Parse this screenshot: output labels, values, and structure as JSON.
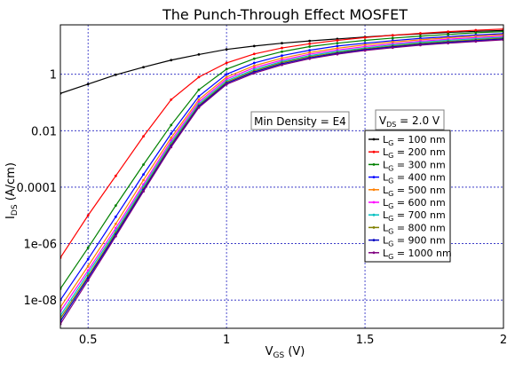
{
  "chart_data": {
    "type": "line",
    "title": "The Punch-Through Effect MOSFET",
    "xlabel": {
      "main": "V",
      "sub": "GS",
      "rest": " (V)"
    },
    "ylabel": {
      "main": "I",
      "sub": "DS",
      "rest": " (A/cm)"
    },
    "xlim": [
      0.4,
      2.0
    ],
    "ylim_log10": [
      -9,
      1.75
    ],
    "yscale": "log",
    "grid": true,
    "x_ticks": [
      0.5,
      1,
      1.5,
      2
    ],
    "x_tick_labels": [
      "0.5",
      "1",
      "1.5",
      "2"
    ],
    "y_ticks_log10": [
      0,
      -2,
      -4,
      -6,
      -8
    ],
    "y_tick_labels": [
      "1",
      "0.01",
      "0.0001",
      "1e-06",
      "1e-08"
    ],
    "legend_position": "right",
    "annotations": [
      {
        "text": "Min Density = E4"
      },
      {
        "main": "V",
        "sub": "DS",
        "rest": " = 2.0 V"
      }
    ],
    "x": [
      0.4,
      0.5,
      0.6,
      0.7,
      0.8,
      0.9,
      1.0,
      1.1,
      1.2,
      1.3,
      1.4,
      1.5,
      1.6,
      1.7,
      1.8,
      1.9,
      2.0
    ],
    "series": [
      {
        "name": {
          "main": "L",
          "sub": "G",
          "rest": " = 100 nm"
        },
        "color": "#000000",
        "log10": [
          -0.68,
          -0.35,
          -0.02,
          0.25,
          0.5,
          0.7,
          0.88,
          1.0,
          1.1,
          1.18,
          1.25,
          1.32,
          1.38,
          1.43,
          1.48,
          1.52,
          1.55
        ]
      },
      {
        "name": {
          "main": "L",
          "sub": "G",
          "rest": " = 200 nm"
        },
        "color": "#ff0000",
        "log10": [
          -6.5,
          -5.0,
          -3.6,
          -2.2,
          -0.9,
          -0.1,
          0.4,
          0.72,
          0.93,
          1.08,
          1.2,
          1.3,
          1.38,
          1.45,
          1.51,
          1.56,
          1.6
        ]
      },
      {
        "name": {
          "main": "L",
          "sub": "G",
          "rest": " = 300 nm"
        },
        "color": "#008000",
        "log10": [
          -7.6,
          -6.15,
          -4.65,
          -3.2,
          -1.8,
          -0.55,
          0.18,
          0.55,
          0.8,
          0.98,
          1.1,
          1.2,
          1.28,
          1.35,
          1.41,
          1.47,
          1.51
        ]
      },
      {
        "name": {
          "main": "L",
          "sub": "G",
          "rest": " = 400 nm"
        },
        "color": "#0000ff",
        "log10": [
          -8.0,
          -6.55,
          -5.05,
          -3.55,
          -2.1,
          -0.78,
          0.0,
          0.4,
          0.66,
          0.85,
          1.0,
          1.1,
          1.19,
          1.27,
          1.33,
          1.39,
          1.44
        ]
      },
      {
        "name": {
          "main": "L",
          "sub": "G",
          "rest": " = 500 nm"
        },
        "color": "#ff8000",
        "log10": [
          -8.25,
          -6.8,
          -5.3,
          -3.75,
          -2.25,
          -0.9,
          -0.1,
          0.3,
          0.57,
          0.77,
          0.92,
          1.04,
          1.14,
          1.22,
          1.29,
          1.35,
          1.4
        ]
      },
      {
        "name": {
          "main": "L",
          "sub": "G",
          "rest": " = 600 nm"
        },
        "color": "#ff00ff",
        "log10": [
          -8.4,
          -6.95,
          -5.45,
          -3.9,
          -2.35,
          -0.98,
          -0.17,
          0.23,
          0.5,
          0.71,
          0.86,
          0.98,
          1.08,
          1.17,
          1.24,
          1.3,
          1.35
        ]
      },
      {
        "name": {
          "main": "L",
          "sub": "G",
          "rest": " = 700 nm"
        },
        "color": "#00c0c0",
        "log10": [
          -8.55,
          -7.05,
          -5.55,
          -3.98,
          -2.43,
          -1.05,
          -0.23,
          0.17,
          0.45,
          0.66,
          0.81,
          0.93,
          1.04,
          1.13,
          1.2,
          1.26,
          1.31
        ]
      },
      {
        "name": {
          "main": "L",
          "sub": "G",
          "rest": " = 800 nm"
        },
        "color": "#808000",
        "log10": [
          -8.65,
          -7.15,
          -5.62,
          -4.05,
          -2.49,
          -1.1,
          -0.28,
          0.12,
          0.41,
          0.62,
          0.77,
          0.9,
          1.0,
          1.09,
          1.16,
          1.22,
          1.28
        ]
      },
      {
        "name": {
          "main": "L",
          "sub": "G",
          "rest": " = 900 nm"
        },
        "color": "#0000c0",
        "log10": [
          -8.75,
          -7.22,
          -5.68,
          -4.1,
          -2.54,
          -1.14,
          -0.32,
          0.08,
          0.37,
          0.58,
          0.74,
          0.87,
          0.97,
          1.06,
          1.13,
          1.19,
          1.25
        ]
      },
      {
        "name": {
          "main": "L",
          "sub": "G",
          "rest": " = 1000 nm"
        },
        "color": "#800080",
        "log10": [
          -8.85,
          -7.3,
          -5.74,
          -4.15,
          -2.58,
          -1.18,
          -0.36,
          0.04,
          0.33,
          0.55,
          0.71,
          0.84,
          0.94,
          1.03,
          1.1,
          1.16,
          1.22
        ]
      }
    ]
  }
}
